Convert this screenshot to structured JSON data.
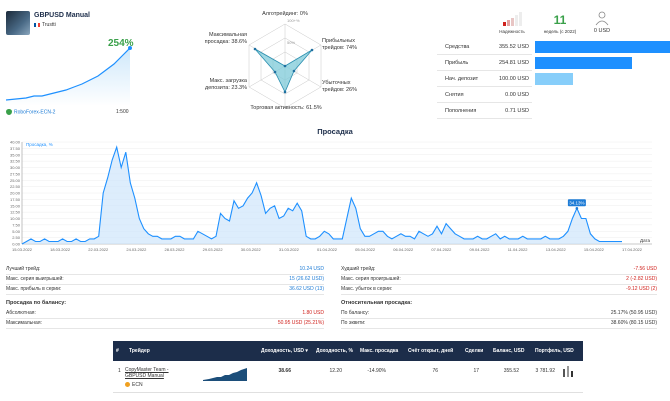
{
  "profile": {
    "name": "GBPUSD Manual",
    "country": "Trustti",
    "gain": "254%",
    "server": "RoboForex-ECN-2",
    "leverage": "1:500"
  },
  "radar": {
    "algo": "Алготрейдинг: 0%",
    "max_dd": "Максимальная просадка: 38.6%",
    "max_load": "Макс. загрузка депозита: 23.3%",
    "activity": "Торговая активность: 61.5%",
    "profit_trades": "Прибыльных трейдов: 74%",
    "loss_trades": "Убыточных трейдов: 26%",
    "ring_labels": [
      "100+%",
      "50%"
    ]
  },
  "header_stats": {
    "reliability_label": "Надежность",
    "weeks_value": "11",
    "weeks_label": "недель (с 2022)",
    "subscribers_value": "0 USD",
    "signal_bars": [
      1,
      2,
      3,
      4,
      5
    ]
  },
  "balance_bars": [
    {
      "label": "Средства",
      "value": "355.52 USD",
      "fill": 1.0,
      "color": "#1e90ff"
    },
    {
      "label": "Прибыль",
      "value": "254.81 USD",
      "fill": 0.72,
      "color": "#1e90ff"
    },
    {
      "label": "Нач. депозит",
      "value": "100.00 USD",
      "fill": 0.28,
      "color": "#87cefa"
    },
    {
      "label": "Снятия",
      "value": "0.00 USD",
      "fill": 0.0,
      "color": "#1e90ff"
    },
    {
      "label": "Пополнения",
      "value": "0.71 USD",
      "fill": 0.0,
      "color": "#1e90ff"
    }
  ],
  "drawdown": {
    "title": "Просадка",
    "legend": "Просадка, %",
    "axis_end": "Дата",
    "callout": "34.13%"
  },
  "chart_data": {
    "type": "area",
    "title": "Просадка",
    "ylabel": "Просадка, %",
    "xlabel": "Дата",
    "ylim": [
      0,
      40
    ],
    "y_ticks": [
      "0.00",
      "2.50",
      "5.00",
      "7.50",
      "10.00",
      "12.50",
      "15.00",
      "17.50",
      "20.00",
      "22.50",
      "25.00",
      "27.50",
      "30.00",
      "32.50",
      "35.00",
      "37.50",
      "40.00"
    ],
    "x_ticks": [
      "15.03.2022",
      "18.03.2022",
      "22.03.2022",
      "24.03.2022",
      "28.03.2022",
      "29.03.2022",
      "30.03.2022",
      "31.03.2022",
      "01.04.2022",
      "05.04.2022",
      "06.04.2022",
      "07.04.2022",
      "09.04.2022",
      "11.04.2022",
      "13.04.2022",
      "15.04.2022",
      "17.04.2022"
    ],
    "series": [
      {
        "name": "Просадка, %",
        "values": [
          0,
          1,
          2,
          1,
          1,
          2,
          1,
          1,
          1,
          2,
          1,
          1,
          2,
          1,
          1,
          2,
          2,
          3,
          20,
          26,
          33,
          38,
          30,
          36,
          24,
          18,
          10,
          6,
          4,
          3,
          3,
          2,
          2,
          2,
          3,
          3,
          2,
          2,
          2,
          5,
          4,
          3,
          2,
          3,
          12,
          10,
          9,
          17,
          14,
          15,
          18,
          20,
          24,
          19,
          12,
          14,
          15,
          10,
          11,
          14,
          13,
          16,
          13,
          3,
          2,
          2,
          3,
          5,
          4,
          2,
          2,
          2,
          10,
          18,
          14,
          6,
          3,
          3,
          4,
          5,
          5,
          3,
          2,
          3,
          4,
          3,
          3,
          2,
          5,
          4,
          3,
          4,
          7,
          4,
          8,
          6,
          4,
          3,
          2,
          2,
          2,
          3,
          2,
          2,
          3,
          4,
          2,
          3,
          2,
          2,
          2,
          3,
          2,
          2,
          2,
          2,
          3,
          2,
          2,
          2,
          3,
          5,
          10,
          14,
          10,
          10,
          4,
          2,
          1,
          1,
          1,
          1,
          1,
          1
        ]
      }
    ]
  },
  "stats_left": [
    {
      "label": "Лучший трейд:",
      "value": "10.24 USD",
      "color": "#1e7cd6"
    },
    {
      "label": "Макс. серия выигрышей:",
      "value": "15 (26.62 USD)",
      "color": "#1e7cd6"
    },
    {
      "label": "Макс. прибыль в серии:",
      "value": "36.62 USD (13)",
      "color": "#1e7cd6"
    }
  ],
  "stats_right": [
    {
      "label": "Худший трейд:",
      "value": "-7.56 USD",
      "color": "#d0211c"
    },
    {
      "label": "Макс. серия проигрышей:",
      "value": "2 (-2.82 USD)",
      "color": "#d0211c"
    },
    {
      "label": "Макс. убыток в серии:",
      "value": "-9.12 USD (2)",
      "color": "#d0211c"
    }
  ],
  "dd_balance": {
    "title": "Просадка по балансу:",
    "rows": [
      {
        "label": "Абсолютная:",
        "value": "1.80 USD",
        "color": "#d0211c"
      },
      {
        "label": "Максимальная:",
        "value": "50.95 USD (25.21%)",
        "color": "#d0211c"
      }
    ]
  },
  "dd_relative": {
    "title": "Относительная просадка:",
    "rows": [
      {
        "label": "По балансу:",
        "value": "25.17% (50.95 USD)",
        "color": "#333333"
      },
      {
        "label": "По эквити:",
        "value": "38.60% (80.15 USD)",
        "color": "#333333"
      }
    ]
  },
  "table": {
    "headers": [
      "#",
      "Трейдер",
      "Доходность, USD ▾",
      "Доходность, %",
      "Макс. просадка",
      "Счёт открыт, дней",
      "Сделки",
      "Баланс, USD",
      "Портфель, USD"
    ],
    "row": {
      "num": "1",
      "trader": "CopyMaster Team - GBPUSD Manual",
      "type": "ECN",
      "profit_usd": "38.66",
      "profit_pct": "12.20",
      "max_dd": "-14.90%",
      "days": "76",
      "deals": "17",
      "balance": "355.52",
      "portfolio": "3 781.92"
    }
  }
}
